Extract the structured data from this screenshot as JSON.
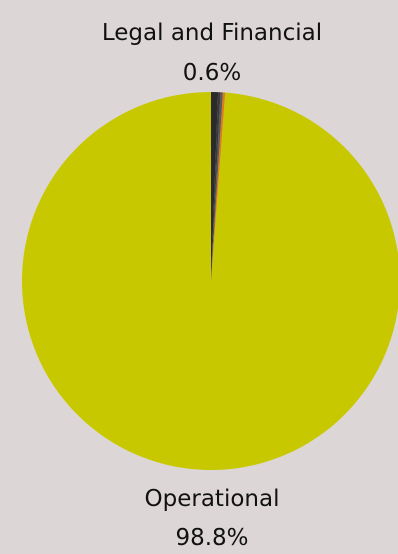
{
  "chart_data": {
    "type": "pie",
    "title": "",
    "slices": [
      {
        "label": "Operational",
        "value": 98.8,
        "value_label": "98.8%",
        "color": "#c8c800"
      },
      {
        "label": "",
        "value": 0.2,
        "value_label": "",
        "color": "#e07b1a"
      },
      {
        "label": "",
        "value": 0.2,
        "value_label": "",
        "color": "#5a5a5a"
      },
      {
        "label": "",
        "value": 0.2,
        "value_label": "",
        "color": "#3a3a3a"
      },
      {
        "label": "Legal and Financial",
        "value": 0.6,
        "value_label": "0.6%",
        "color": "#2b2b2b"
      }
    ],
    "start_angle_deg": 0,
    "direction": "counterclockwise",
    "legend": "none"
  },
  "background_color": "#ddd6d6"
}
